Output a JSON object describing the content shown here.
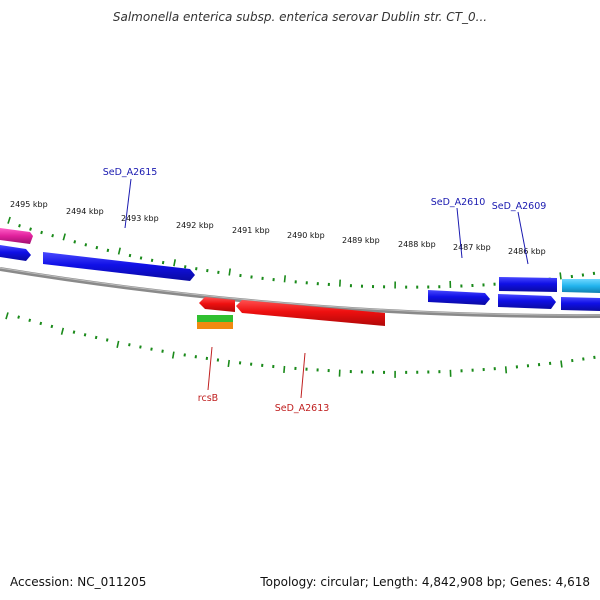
{
  "title": "Salmonella enterica subsp. enterica serovar Dublin str. CT_0...",
  "footer": {
    "accession": "Accession: NC_011205",
    "summary": "Topology: circular; Length: 4,842,908 bp; Genes: 4,618"
  },
  "colors": {
    "forward_gene": "#1010e6",
    "cyan_gene": "#22b4ee",
    "magenta_gene": "#e0209c",
    "reverse_gene": "#ee1010",
    "green_gene": "#30c030",
    "orange_gene": "#f08a10",
    "backbone": "#8a8a8a",
    "tick": "#1a8a1a",
    "forward_label": "#1a1ab0",
    "reverse_label": "#c02020"
  },
  "scale": {
    "tick_labels": [
      "2495 kbp",
      "2494 kbp",
      "2493 kbp",
      "2492 kbp",
      "2491 kbp",
      "2490 kbp",
      "2489 kbp",
      "2488 kbp",
      "2487 kbp",
      "2486 kbp"
    ]
  },
  "labels": {
    "forward": [
      "SeD_A2615",
      "SeD_A2610",
      "SeD_A2609"
    ],
    "reverse": [
      "rcsB",
      "SeD_A2613"
    ]
  }
}
